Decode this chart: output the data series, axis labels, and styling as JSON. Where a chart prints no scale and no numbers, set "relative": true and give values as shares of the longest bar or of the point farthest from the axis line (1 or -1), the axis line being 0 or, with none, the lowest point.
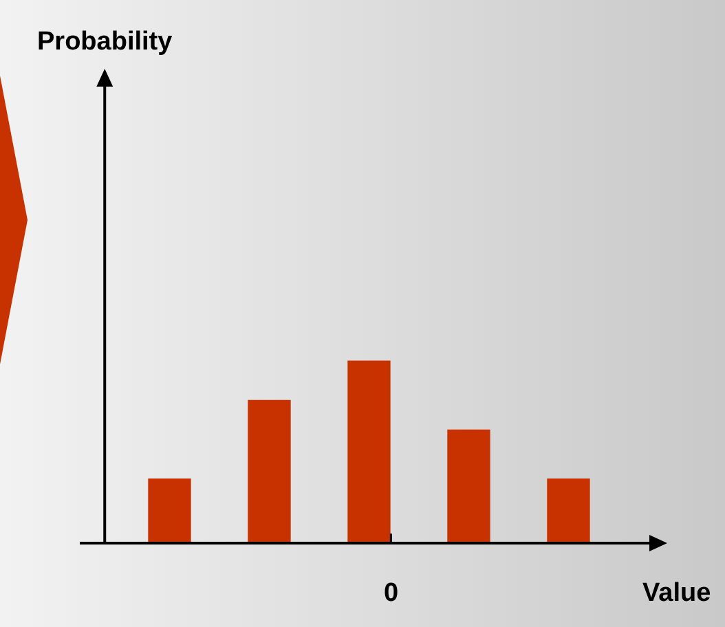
{
  "chart_data": {
    "type": "bar",
    "relative": true,
    "xlabel": "Value",
    "categories": [
      null,
      null,
      null,
      null,
      null
    ],
    "values": [
      0.354,
      0.785,
      1,
      0.623,
      0.354
    ],
    "color": "#c83200",
    "annotations": [
      "Probability",
      "0"
    ],
    "legend": false
  }
}
